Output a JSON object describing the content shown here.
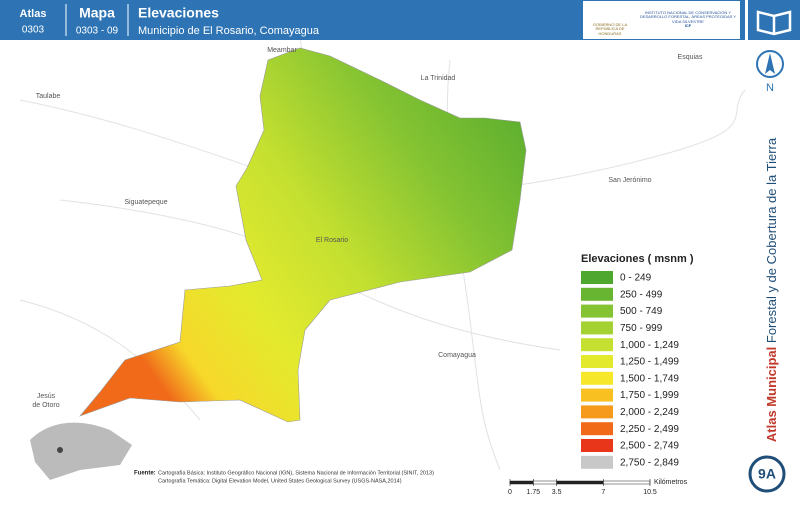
{
  "header": {
    "atlas_label": "Atlas",
    "atlas_code": "0303",
    "map_label": "Mapa",
    "map_code": "0303 - 09",
    "title": "Elevaciones",
    "subtitle": "Municipio de El Rosario, Comayagua",
    "logo_left": "GOBIERNO DE LA REPÚBLICA DE HONDURAS",
    "logo_right": "INSTITUTO NACIONAL DE CONSERVACIÓN Y DESARROLLO FORESTAL, ÁREAS PROTEGIDAS Y VIDA SILVESTRE",
    "logo_short": "ICF"
  },
  "map": {
    "places": [
      {
        "label": "Meambar"
      },
      {
        "label": "La Trinidad"
      },
      {
        "label": "Esquias"
      },
      {
        "label": "Taulabe"
      },
      {
        "label": "San Jerónimo"
      },
      {
        "label": "Siguatepeque"
      },
      {
        "label": "El Rosario"
      },
      {
        "label": "Comayagua"
      },
      {
        "label": "Jesús"
      },
      {
        "label": "de Otoro"
      }
    ]
  },
  "legend": {
    "title": "Elevaciones ( msnm )",
    "items": [
      {
        "label": "0 - 249",
        "color": "#4ea72e"
      },
      {
        "label": "250 - 499",
        "color": "#68b531"
      },
      {
        "label": "500 - 749",
        "color": "#84c332"
      },
      {
        "label": "750 - 999",
        "color": "#a3d131"
      },
      {
        "label": "1,000 - 1,249",
        "color": "#c5e030"
      },
      {
        "label": "1,250 - 1,499",
        "color": "#e3ea2e"
      },
      {
        "label": "1,500 - 1,749",
        "color": "#f7e72a"
      },
      {
        "label": "1,750 - 1,999",
        "color": "#f8c020"
      },
      {
        "label": "2,000 - 2,249",
        "color": "#f59a1c"
      },
      {
        "label": "2,250 - 2,499",
        "color": "#f06a1a"
      },
      {
        "label": "2,500 - 2,749",
        "color": "#e8361a"
      },
      {
        "label": "2,750 - 2,849",
        "color": "#c8c8c8"
      }
    ]
  },
  "sources": {
    "heading": "Fuente:",
    "line1": "Cartografía Básica: Instituto Geográfico Nacional (IGN), Sistema Nacional de Información Territorial (SINIT, 2013)",
    "line2": "Cartografía Temática: Digital Elevation Model, United States Geological Survey (USGS-NASA,2014)"
  },
  "scale": {
    "ticks": [
      0,
      1.75,
      3.5,
      7,
      10.5
    ],
    "unit": "Kilómetros"
  },
  "sidebar": {
    "north": "N",
    "title_bold": "Atlas Municipal",
    "title_rest": " Forestal y de Cobertura de la Tierra",
    "badge": "9A"
  }
}
